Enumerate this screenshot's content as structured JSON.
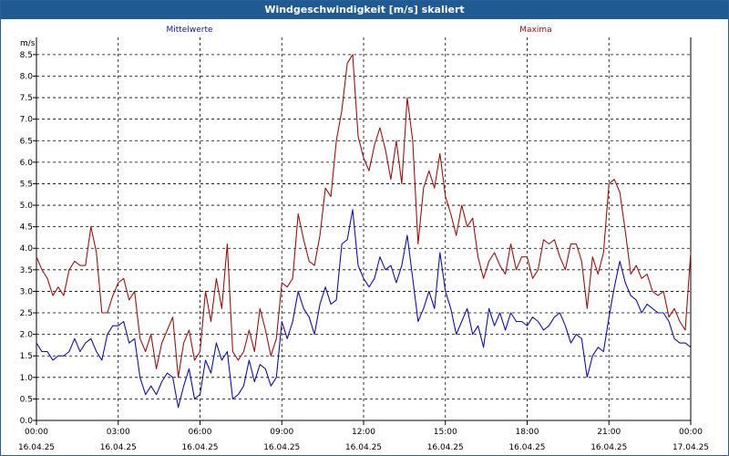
{
  "window": {
    "title": "Windgeschwindigkeit [m/s] skaliert"
  },
  "colors": {
    "mittel": "#1010b0",
    "maxima": "#a01010",
    "grid": "#000000"
  },
  "chart_data": {
    "type": "line",
    "ylabel": "m/s",
    "ylim": [
      0,
      8.9
    ],
    "xlim": [
      0,
      24
    ],
    "grid": true,
    "y_ticks": [
      "0.0",
      "0.5",
      "1.0",
      "1.5",
      "2.0",
      "2.5",
      "3.0",
      "3.5",
      "4.0",
      "4.5",
      "5.0",
      "5.5",
      "6.0",
      "6.5",
      "7.0",
      "7.5",
      "8.0",
      "8.5"
    ],
    "x_ticks": [
      {
        "time": "00:00",
        "date": "16.04.25"
      },
      {
        "time": "03:00",
        "date": "16.04.25"
      },
      {
        "time": "06:00",
        "date": "16.04.25"
      },
      {
        "time": "09:00",
        "date": "16.04.25"
      },
      {
        "time": "12:00",
        "date": "16.04.25"
      },
      {
        "time": "15:00",
        "date": "16.04.25"
      },
      {
        "time": "18:00",
        "date": "16.04.25"
      },
      {
        "time": "21:00",
        "date": "16.04.25"
      },
      {
        "time": "00:00",
        "date": "17.04.25"
      }
    ],
    "series": [
      {
        "name": "Mittelwerte",
        "points": [
          [
            0.0,
            1.8
          ],
          [
            0.2,
            1.6
          ],
          [
            0.4,
            1.6
          ],
          [
            0.6,
            1.4
          ],
          [
            0.8,
            1.5
          ],
          [
            1.0,
            1.5
          ],
          [
            1.2,
            1.6
          ],
          [
            1.4,
            1.9
          ],
          [
            1.6,
            1.6
          ],
          [
            1.8,
            1.8
          ],
          [
            2.0,
            1.9
          ],
          [
            2.2,
            1.6
          ],
          [
            2.4,
            1.4
          ],
          [
            2.6,
            2.0
          ],
          [
            2.8,
            2.2
          ],
          [
            3.0,
            2.2
          ],
          [
            3.2,
            2.3
          ],
          [
            3.4,
            1.8
          ],
          [
            3.6,
            1.9
          ],
          [
            3.8,
            1.0
          ],
          [
            4.0,
            0.6
          ],
          [
            4.2,
            0.8
          ],
          [
            4.4,
            0.6
          ],
          [
            4.6,
            0.9
          ],
          [
            4.8,
            1.1
          ],
          [
            5.0,
            1.0
          ],
          [
            5.2,
            0.3
          ],
          [
            5.4,
            0.8
          ],
          [
            5.6,
            1.2
          ],
          [
            5.8,
            0.5
          ],
          [
            6.0,
            0.6
          ],
          [
            6.2,
            1.4
          ],
          [
            6.4,
            1.1
          ],
          [
            6.6,
            1.8
          ],
          [
            6.8,
            1.4
          ],
          [
            7.0,
            1.6
          ],
          [
            7.2,
            0.5
          ],
          [
            7.4,
            0.6
          ],
          [
            7.6,
            0.8
          ],
          [
            7.8,
            1.4
          ],
          [
            8.0,
            0.9
          ],
          [
            8.2,
            1.3
          ],
          [
            8.4,
            1.2
          ],
          [
            8.6,
            0.8
          ],
          [
            8.8,
            1.0
          ],
          [
            9.0,
            2.3
          ],
          [
            9.2,
            1.9
          ],
          [
            9.4,
            2.3
          ],
          [
            9.6,
            3.0
          ],
          [
            9.8,
            2.6
          ],
          [
            10.0,
            2.4
          ],
          [
            10.2,
            2.0
          ],
          [
            10.4,
            2.7
          ],
          [
            10.6,
            3.1
          ],
          [
            10.8,
            2.7
          ],
          [
            11.0,
            2.8
          ],
          [
            11.2,
            4.1
          ],
          [
            11.4,
            4.2
          ],
          [
            11.6,
            4.9
          ],
          [
            11.8,
            3.6
          ],
          [
            12.0,
            3.3
          ],
          [
            12.2,
            3.1
          ],
          [
            12.4,
            3.3
          ],
          [
            12.6,
            3.8
          ],
          [
            12.8,
            3.5
          ],
          [
            13.0,
            3.6
          ],
          [
            13.2,
            3.2
          ],
          [
            13.4,
            3.6
          ],
          [
            13.6,
            4.3
          ],
          [
            13.8,
            3.3
          ],
          [
            14.0,
            2.3
          ],
          [
            14.2,
            2.6
          ],
          [
            14.4,
            3.0
          ],
          [
            14.6,
            2.6
          ],
          [
            14.8,
            3.9
          ],
          [
            15.0,
            3.0
          ],
          [
            15.2,
            2.6
          ],
          [
            15.4,
            2.0
          ],
          [
            15.6,
            2.3
          ],
          [
            15.8,
            2.6
          ],
          [
            16.0,
            2.0
          ],
          [
            16.2,
            2.2
          ],
          [
            16.4,
            1.7
          ],
          [
            16.6,
            2.6
          ],
          [
            16.8,
            2.2
          ],
          [
            17.0,
            2.5
          ],
          [
            17.2,
            2.1
          ],
          [
            17.4,
            2.5
          ],
          [
            17.6,
            2.3
          ],
          [
            17.8,
            2.3
          ],
          [
            18.0,
            2.2
          ],
          [
            18.2,
            2.4
          ],
          [
            18.4,
            2.3
          ],
          [
            18.6,
            2.1
          ],
          [
            18.8,
            2.2
          ],
          [
            19.0,
            2.4
          ],
          [
            19.2,
            2.5
          ],
          [
            19.4,
            2.2
          ],
          [
            19.6,
            1.8
          ],
          [
            19.8,
            2.0
          ],
          [
            20.0,
            1.9
          ],
          [
            20.2,
            1.0
          ],
          [
            20.4,
            1.5
          ],
          [
            20.6,
            1.7
          ],
          [
            20.8,
            1.6
          ],
          [
            21.0,
            2.4
          ],
          [
            21.2,
            3.1
          ],
          [
            21.4,
            3.7
          ],
          [
            21.6,
            3.2
          ],
          [
            21.8,
            2.9
          ],
          [
            22.0,
            2.8
          ],
          [
            22.2,
            2.5
          ],
          [
            22.4,
            2.7
          ],
          [
            22.6,
            2.6
          ],
          [
            22.8,
            2.5
          ],
          [
            23.0,
            2.5
          ],
          [
            23.2,
            2.3
          ],
          [
            23.4,
            1.9
          ],
          [
            23.6,
            1.8
          ],
          [
            23.8,
            1.8
          ],
          [
            24.0,
            1.7
          ]
        ]
      },
      {
        "name": "Maxima",
        "points": [
          [
            0.0,
            3.8
          ],
          [
            0.2,
            3.5
          ],
          [
            0.4,
            3.3
          ],
          [
            0.6,
            2.9
          ],
          [
            0.8,
            3.1
          ],
          [
            1.0,
            2.9
          ],
          [
            1.2,
            3.5
          ],
          [
            1.4,
            3.7
          ],
          [
            1.6,
            3.6
          ],
          [
            1.8,
            3.6
          ],
          [
            2.0,
            4.5
          ],
          [
            2.2,
            3.9
          ],
          [
            2.4,
            2.5
          ],
          [
            2.6,
            2.5
          ],
          [
            2.8,
            2.9
          ],
          [
            3.0,
            3.2
          ],
          [
            3.2,
            3.3
          ],
          [
            3.4,
            2.8
          ],
          [
            3.6,
            3.0
          ],
          [
            3.8,
            1.9
          ],
          [
            4.0,
            1.6
          ],
          [
            4.2,
            2.0
          ],
          [
            4.4,
            1.2
          ],
          [
            4.6,
            1.8
          ],
          [
            4.8,
            2.1
          ],
          [
            5.0,
            2.4
          ],
          [
            5.2,
            1.0
          ],
          [
            5.4,
            1.8
          ],
          [
            5.6,
            2.1
          ],
          [
            5.8,
            1.4
          ],
          [
            6.0,
            1.6
          ],
          [
            6.2,
            3.0
          ],
          [
            6.4,
            2.3
          ],
          [
            6.6,
            3.3
          ],
          [
            6.8,
            2.6
          ],
          [
            7.0,
            4.1
          ],
          [
            7.2,
            1.6
          ],
          [
            7.4,
            1.4
          ],
          [
            7.6,
            1.6
          ],
          [
            7.8,
            2.1
          ],
          [
            8.0,
            1.6
          ],
          [
            8.2,
            2.6
          ],
          [
            8.4,
            2.1
          ],
          [
            8.6,
            1.5
          ],
          [
            8.8,
            1.9
          ],
          [
            9.0,
            3.2
          ],
          [
            9.2,
            3.1
          ],
          [
            9.4,
            3.3
          ],
          [
            9.6,
            4.8
          ],
          [
            9.8,
            4.2
          ],
          [
            10.0,
            3.7
          ],
          [
            10.2,
            3.6
          ],
          [
            10.4,
            4.3
          ],
          [
            10.6,
            5.4
          ],
          [
            10.8,
            5.2
          ],
          [
            11.0,
            6.5
          ],
          [
            11.2,
            7.2
          ],
          [
            11.4,
            8.3
          ],
          [
            11.6,
            8.5
          ],
          [
            11.8,
            6.6
          ],
          [
            12.0,
            6.1
          ],
          [
            12.2,
            5.8
          ],
          [
            12.4,
            6.4
          ],
          [
            12.6,
            6.8
          ],
          [
            12.8,
            6.3
          ],
          [
            13.0,
            5.6
          ],
          [
            13.2,
            6.5
          ],
          [
            13.4,
            5.5
          ],
          [
            13.6,
            7.5
          ],
          [
            13.8,
            6.5
          ],
          [
            14.0,
            4.1
          ],
          [
            14.2,
            5.4
          ],
          [
            14.4,
            5.8
          ],
          [
            14.6,
            5.4
          ],
          [
            14.8,
            6.2
          ],
          [
            15.0,
            5.2
          ],
          [
            15.2,
            4.8
          ],
          [
            15.4,
            4.3
          ],
          [
            15.6,
            5.0
          ],
          [
            15.8,
            4.5
          ],
          [
            16.0,
            4.7
          ],
          [
            16.2,
            3.8
          ],
          [
            16.4,
            3.3
          ],
          [
            16.6,
            3.7
          ],
          [
            16.8,
            3.9
          ],
          [
            17.0,
            3.6
          ],
          [
            17.2,
            3.4
          ],
          [
            17.4,
            4.1
          ],
          [
            17.6,
            3.5
          ],
          [
            17.8,
            3.8
          ],
          [
            18.0,
            3.8
          ],
          [
            18.2,
            3.3
          ],
          [
            18.4,
            3.5
          ],
          [
            18.6,
            4.2
          ],
          [
            18.8,
            4.1
          ],
          [
            19.0,
            4.2
          ],
          [
            19.2,
            3.8
          ],
          [
            19.4,
            3.5
          ],
          [
            19.6,
            4.1
          ],
          [
            19.8,
            4.1
          ],
          [
            20.0,
            3.7
          ],
          [
            20.2,
            2.6
          ],
          [
            20.4,
            3.8
          ],
          [
            20.6,
            3.4
          ],
          [
            20.8,
            3.9
          ],
          [
            21.0,
            5.5
          ],
          [
            21.2,
            5.6
          ],
          [
            21.4,
            5.3
          ],
          [
            21.6,
            4.4
          ],
          [
            21.8,
            3.4
          ],
          [
            22.0,
            3.6
          ],
          [
            22.2,
            3.3
          ],
          [
            22.4,
            3.4
          ],
          [
            22.6,
            3.0
          ],
          [
            22.8,
            2.9
          ],
          [
            23.0,
            3.0
          ],
          [
            23.2,
            2.4
          ],
          [
            23.4,
            2.6
          ],
          [
            23.6,
            2.3
          ],
          [
            23.8,
            2.1
          ],
          [
            24.0,
            3.9
          ]
        ]
      }
    ]
  }
}
